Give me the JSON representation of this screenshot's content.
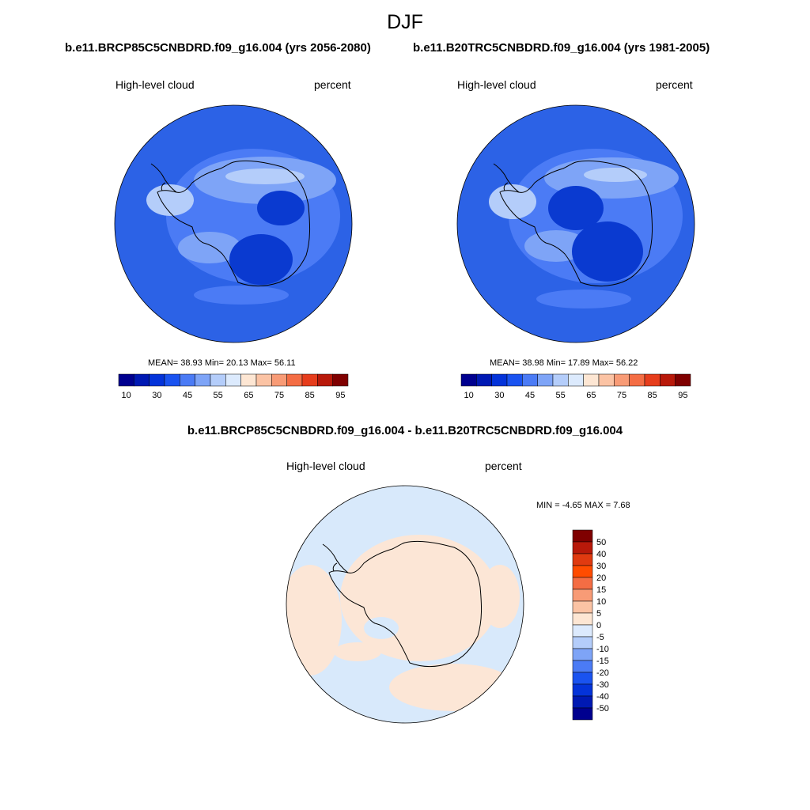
{
  "figure": {
    "title": "DJF",
    "panels": [
      {
        "title": "b.e11.BRCP85C5CNBDRD.f09_g16.004 (yrs 2056-2080)",
        "left_label": "High-level cloud",
        "right_label": "percent",
        "stats": "MEAN=  38.93  Min=  20.13  Max=  56.11"
      },
      {
        "title": "b.e11.B20TRC5CNBDRD.f09_g16.004 (yrs 1981-2005)",
        "left_label": "High-level cloud",
        "right_label": "percent",
        "stats": "MEAN=  38.98  Min=  17.89  Max=  56.22"
      }
    ],
    "difference": {
      "title": "b.e11.BRCP85C5CNBDRD.f09_g16.004 - b.e11.B20TRC5CNBDRD.f09_g16.004",
      "left_label": "High-level cloud",
      "right_label": "percent",
      "stats": "MIN =  -4.65 MAX =   7.68"
    }
  },
  "colorbars": {
    "abs_colors": [
      "#00008f",
      "#0019b3",
      "#0433d9",
      "#1a53f0",
      "#4b7bf5",
      "#7ea4f7",
      "#b4cdfa",
      "#dceafd",
      "#fde6d3",
      "#fbc3a4",
      "#f89b76",
      "#f46d44",
      "#e63d1c",
      "#b8190a",
      "#7f0000"
    ],
    "abs_tick_labels": [
      "10",
      "30",
      "45",
      "55",
      "65",
      "75",
      "85",
      "95"
    ],
    "diff_colors": [
      "#00008f",
      "#0019b3",
      "#0433d9",
      "#1a53f0",
      "#4b7bf5",
      "#7ea4f7",
      "#b4cdfa",
      "#dceafd",
      "#fde6d3",
      "#fbc3a4",
      "#f89b76",
      "#f46d44",
      "#ff4c00",
      "#e03a10",
      "#b8190a",
      "#7f0000"
    ],
    "diff_tick_labels": [
      "50",
      "40",
      "30",
      "20",
      "15",
      "10",
      "5",
      "0",
      "-5",
      "-10",
      "-15",
      "-20",
      "-30",
      "-40",
      "-50"
    ]
  },
  "map_colors": {
    "ocean_base": "#2c62e6",
    "zone_mid": "#4b7bf5",
    "zone_light": "#7ea4f7",
    "zone_lighter": "#b4cdfa",
    "zone_dark": "#0a3ad0",
    "diff_neg": "#d8e9fb",
    "diff_pos": "#fce6d6",
    "coast": "#000000"
  }
}
